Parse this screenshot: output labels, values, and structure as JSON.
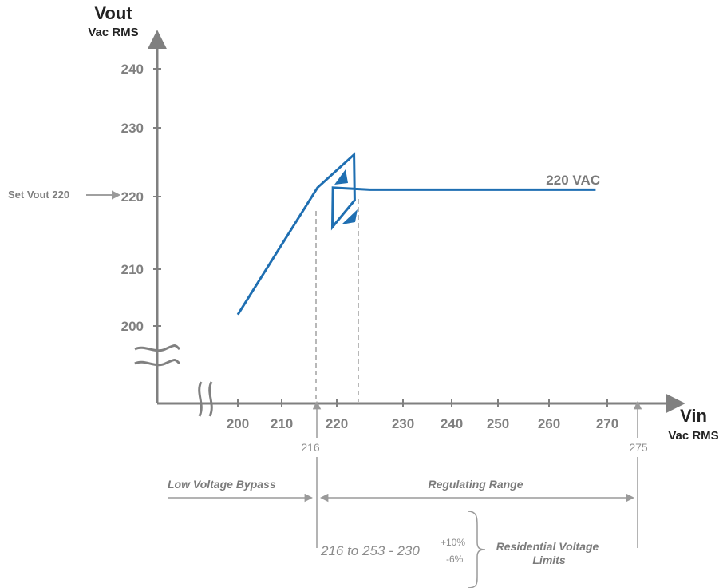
{
  "colors": {
    "axis": "#808080",
    "series": "#1f6fb2",
    "guide": "#9a9a9a",
    "text_dark": "#222222",
    "text_mid": "#7f7f7f"
  },
  "labels": {
    "y_title": "Vout",
    "y_unit": "Vac RMS",
    "x_title": "Vin",
    "x_unit": "Vac RMS",
    "set_vout": "Set Vout 220",
    "marker_216": "216",
    "marker_275": "275",
    "low_voltage_bypass": "Low Voltage Bypass",
    "regulating_range": "Regulating Range",
    "formula_main": "216 to 253 - 230",
    "formula_plus": "+10%",
    "formula_minus": "-6%",
    "residential_line1": "Residential Voltage",
    "residential_line2": "Limits"
  },
  "chart_data": {
    "type": "line",
    "title": "",
    "xlabel": "Vin",
    "ylabel": "Vout",
    "x_ticks": [
      "200",
      "210",
      "220",
      "230",
      "240",
      "250",
      "260",
      "270"
    ],
    "y_ticks": [
      "200",
      "210",
      "220",
      "230",
      "240"
    ],
    "series": [
      {
        "name": "220 VAC",
        "points": [
          {
            "x": 200,
            "y": 202
          },
          {
            "x": 216.5,
            "y": 221.3
          },
          {
            "x": 222.6,
            "y": 226.1
          },
          {
            "x": 222.7,
            "y": 219.5
          },
          {
            "x": 219.2,
            "y": 215.8
          },
          {
            "x": 219.3,
            "y": 221.3
          },
          {
            "x": 225,
            "y": 221
          },
          {
            "x": 268,
            "y": 221
          }
        ]
      }
    ],
    "annotations": [
      {
        "text": "Set Vout 220",
        "x": 0,
        "y": 220
      },
      {
        "text": "216",
        "x": 216,
        "y": 0
      },
      {
        "text": "275",
        "x": 275,
        "y": 0
      }
    ],
    "ranges": [
      {
        "label": "Low Voltage Bypass",
        "x": [
          0,
          216
        ]
      },
      {
        "label": "Regulating Range",
        "x": [
          216,
          275
        ]
      }
    ]
  }
}
